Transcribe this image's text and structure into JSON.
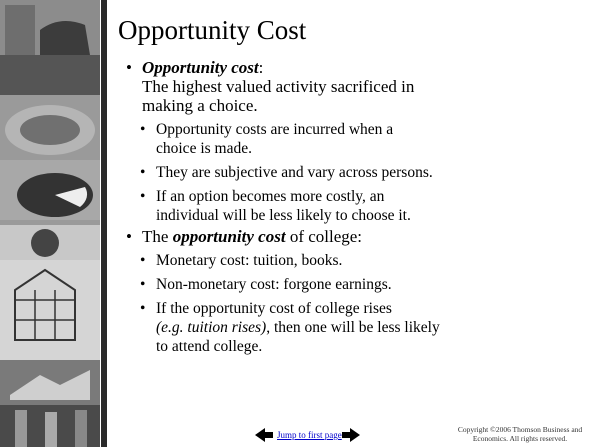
{
  "slide": {
    "title": "Opportunity Cost",
    "bullets": [
      {
        "runs": [
          {
            "text": "Opportunity cost",
            "style": "bold-italic"
          },
          {
            "text": ":"
          }
        ],
        "lines": [
          [
            {
              "text": "The highest valued activity sacrificed in"
            }
          ],
          [
            {
              "text": "making a choice."
            }
          ]
        ],
        "subs": [
          {
            "lines": [
              [
                {
                  "text": "Opportunity costs are incurred when a"
                }
              ],
              [
                {
                  "text": "choice is made."
                }
              ]
            ]
          },
          {
            "lines": [
              [
                {
                  "text": "They are subjective and vary across persons."
                }
              ]
            ]
          },
          {
            "lines": [
              [
                {
                  "text": "If an option becomes more costly, an"
                }
              ],
              [
                {
                  "text": "individual will be less likely to choose it."
                }
              ]
            ]
          }
        ]
      },
      {
        "runs": [
          {
            "text": "The "
          },
          {
            "text": "opportunity cost",
            "style": "bold-italic"
          },
          {
            "text": " of college:"
          }
        ],
        "lines": [],
        "subs": [
          {
            "lines": [
              [
                {
                  "text": "Monetary cost: tuition, books."
                }
              ]
            ]
          },
          {
            "lines": [
              [
                {
                  "text": "Non-monetary cost: forgone earnings."
                }
              ]
            ]
          },
          {
            "lines": [
              [
                {
                  "text": "If the opportunity cost of college rises"
                }
              ],
              [
                {
                  "text": "(e.g. tuition rises)",
                  "style": "italic"
                },
                {
                  "text": ", then one will be less likely"
                }
              ],
              [
                {
                  "text": "to attend college."
                }
              ]
            ]
          }
        ]
      }
    ],
    "footer": {
      "link": "Jump to first page",
      "copyright": "Copyright ©2006  Thomson Business and Economics. All rights reserved."
    }
  }
}
